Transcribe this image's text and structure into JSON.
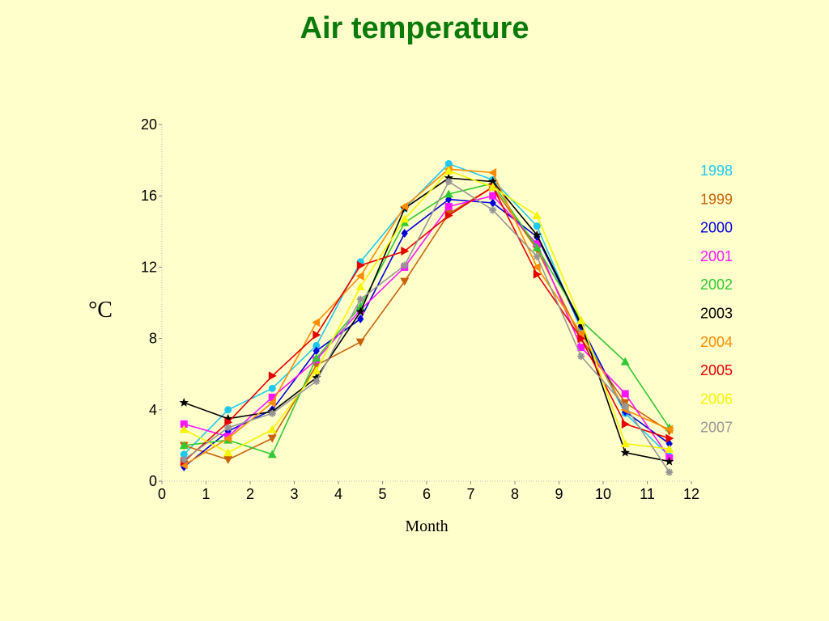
{
  "page": {
    "title": "Air temperature",
    "title_color": "#0a7a0a",
    "background": "#ffffcc"
  },
  "chart_data": {
    "type": "line",
    "title": "Air temperature",
    "xlabel": "Month",
    "ylabel": "°C",
    "xlim": [
      0,
      12
    ],
    "ylim": [
      0,
      20
    ],
    "xticks": [
      0,
      1,
      2,
      3,
      4,
      5,
      6,
      7,
      8,
      9,
      10,
      11,
      12
    ],
    "yticks": [
      0,
      4,
      8,
      12,
      16,
      20
    ],
    "grid": false,
    "legend_position": "right",
    "x": [
      0.5,
      1.5,
      2.5,
      3.5,
      4.5,
      5.5,
      6.5,
      7.5,
      8.5,
      9.5,
      10.5,
      11.5
    ],
    "series": [
      {
        "name": "1998",
        "color": "#1ec8f0",
        "marker": "circle",
        "values": [
          1.5,
          4.0,
          5.2,
          7.6,
          12.3,
          15.3,
          17.8,
          16.9,
          14.3,
          8.5,
          3.8,
          1.4
        ]
      },
      {
        "name": "1999",
        "color": "#c8640a",
        "marker": "triangle-down",
        "values": [
          2.0,
          1.2,
          2.4,
          6.5,
          7.8,
          11.2,
          15.0,
          16.5,
          13.0,
          8.0,
          4.4,
          2.8
        ]
      },
      {
        "name": "2000",
        "color": "#0000dc",
        "marker": "diamond",
        "values": [
          0.8,
          2.8,
          4.0,
          7.3,
          9.1,
          13.9,
          15.8,
          15.6,
          13.7,
          8.7,
          3.9,
          2.1
        ]
      },
      {
        "name": "2001",
        "color": "#ff14ff",
        "marker": "square",
        "values": [
          3.2,
          2.5,
          4.7,
          6.8,
          9.6,
          12.0,
          15.4,
          16.0,
          13.3,
          7.5,
          4.9,
          1.3
        ]
      },
      {
        "name": "2002",
        "color": "#32c832",
        "marker": "triangle-up",
        "values": [
          2.0,
          2.3,
          1.5,
          6.9,
          9.8,
          14.5,
          16.1,
          16.7,
          13.1,
          9.0,
          6.7,
          3.0
        ]
      },
      {
        "name": "2003",
        "color": "#000000",
        "marker": "star",
        "values": [
          4.4,
          3.5,
          3.9,
          5.8,
          9.5,
          15.3,
          17.0,
          16.8,
          13.8,
          8.8,
          1.6,
          1.1
        ]
      },
      {
        "name": "2004",
        "color": "#ff8c00",
        "marker": "triangle-left",
        "values": [
          0.9,
          2.4,
          4.4,
          8.9,
          11.5,
          15.4,
          17.5,
          17.3,
          12.0,
          8.3,
          4.0,
          2.9
        ]
      },
      {
        "name": "2005",
        "color": "#e60000",
        "marker": "triangle-right",
        "values": [
          1.1,
          3.3,
          5.9,
          8.2,
          12.1,
          12.9,
          14.9,
          16.5,
          11.6,
          8.0,
          3.2,
          2.4
        ]
      },
      {
        "name": "2006",
        "color": "#f5f500",
        "marker": "triangle-up",
        "values": [
          2.9,
          1.6,
          2.9,
          6.2,
          10.9,
          14.7,
          17.4,
          16.5,
          14.9,
          9.0,
          2.1,
          1.8
        ]
      },
      {
        "name": "2007",
        "color": "#969696",
        "marker": "asterisk",
        "values": [
          1.2,
          3.0,
          3.8,
          5.6,
          10.2,
          12.1,
          16.8,
          15.2,
          12.6,
          7.0,
          4.2,
          0.5
        ]
      }
    ]
  }
}
